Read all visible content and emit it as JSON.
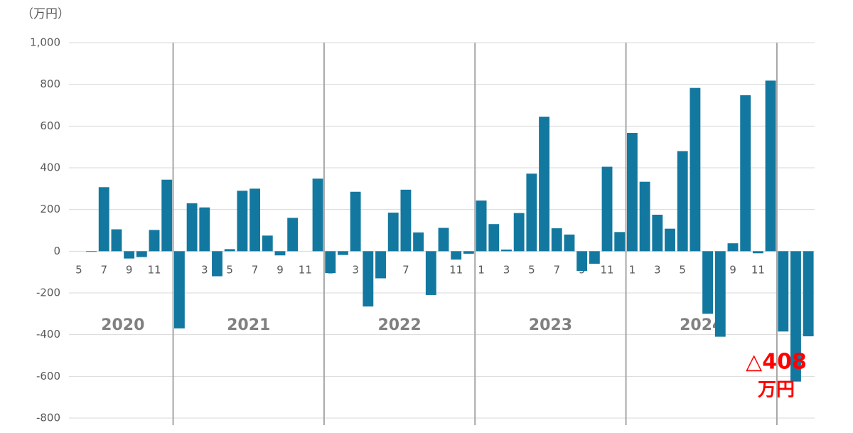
{
  "chart_data": {
    "type": "bar",
    "unit_label": "（万円）",
    "categories": [
      "5",
      null,
      "7",
      null,
      "9",
      null,
      "11",
      null,
      "1",
      null,
      "3",
      null,
      "5",
      null,
      "7",
      null,
      "9",
      null,
      "11",
      null,
      "1",
      null,
      "3",
      null,
      "5",
      null,
      "7",
      null,
      "9",
      null,
      "11",
      null,
      "1",
      null,
      "3",
      null,
      "5",
      null,
      "7",
      null,
      "9",
      null,
      "11",
      null,
      "1",
      null,
      "3",
      null,
      "5",
      null,
      "7",
      null,
      "9",
      null,
      "11",
      null,
      "1",
      null,
      "3"
    ],
    "values": [
      0,
      -3,
      307,
      105,
      -35,
      -28,
      102,
      343,
      -370,
      230,
      210,
      -120,
      10,
      290,
      300,
      75,
      -20,
      160,
      0,
      348,
      -105,
      -18,
      285,
      -265,
      -130,
      185,
      295,
      90,
      -210,
      112,
      -40,
      -12,
      243,
      130,
      8,
      183,
      372,
      645,
      110,
      80,
      -95,
      -60,
      405,
      92,
      567,
      333,
      175,
      108,
      480,
      783,
      -300,
      -410,
      38,
      748,
      -10,
      818,
      -385,
      -625,
      -408
    ],
    "color": "#13789f",
    "year_labels": [
      "2020",
      "2021",
      "2022",
      "2023",
      "2024"
    ],
    "annotation": [
      "△408",
      "万円"
    ],
    "annotation_color": "#ff0000",
    "ylim": [
      -800,
      1000
    ],
    "yticks": [
      -800,
      -600,
      -400,
      -200,
      0,
      200,
      400,
      600,
      800,
      {
        "value": 1000,
        "label": "1,000"
      }
    ],
    "grid": true
  }
}
